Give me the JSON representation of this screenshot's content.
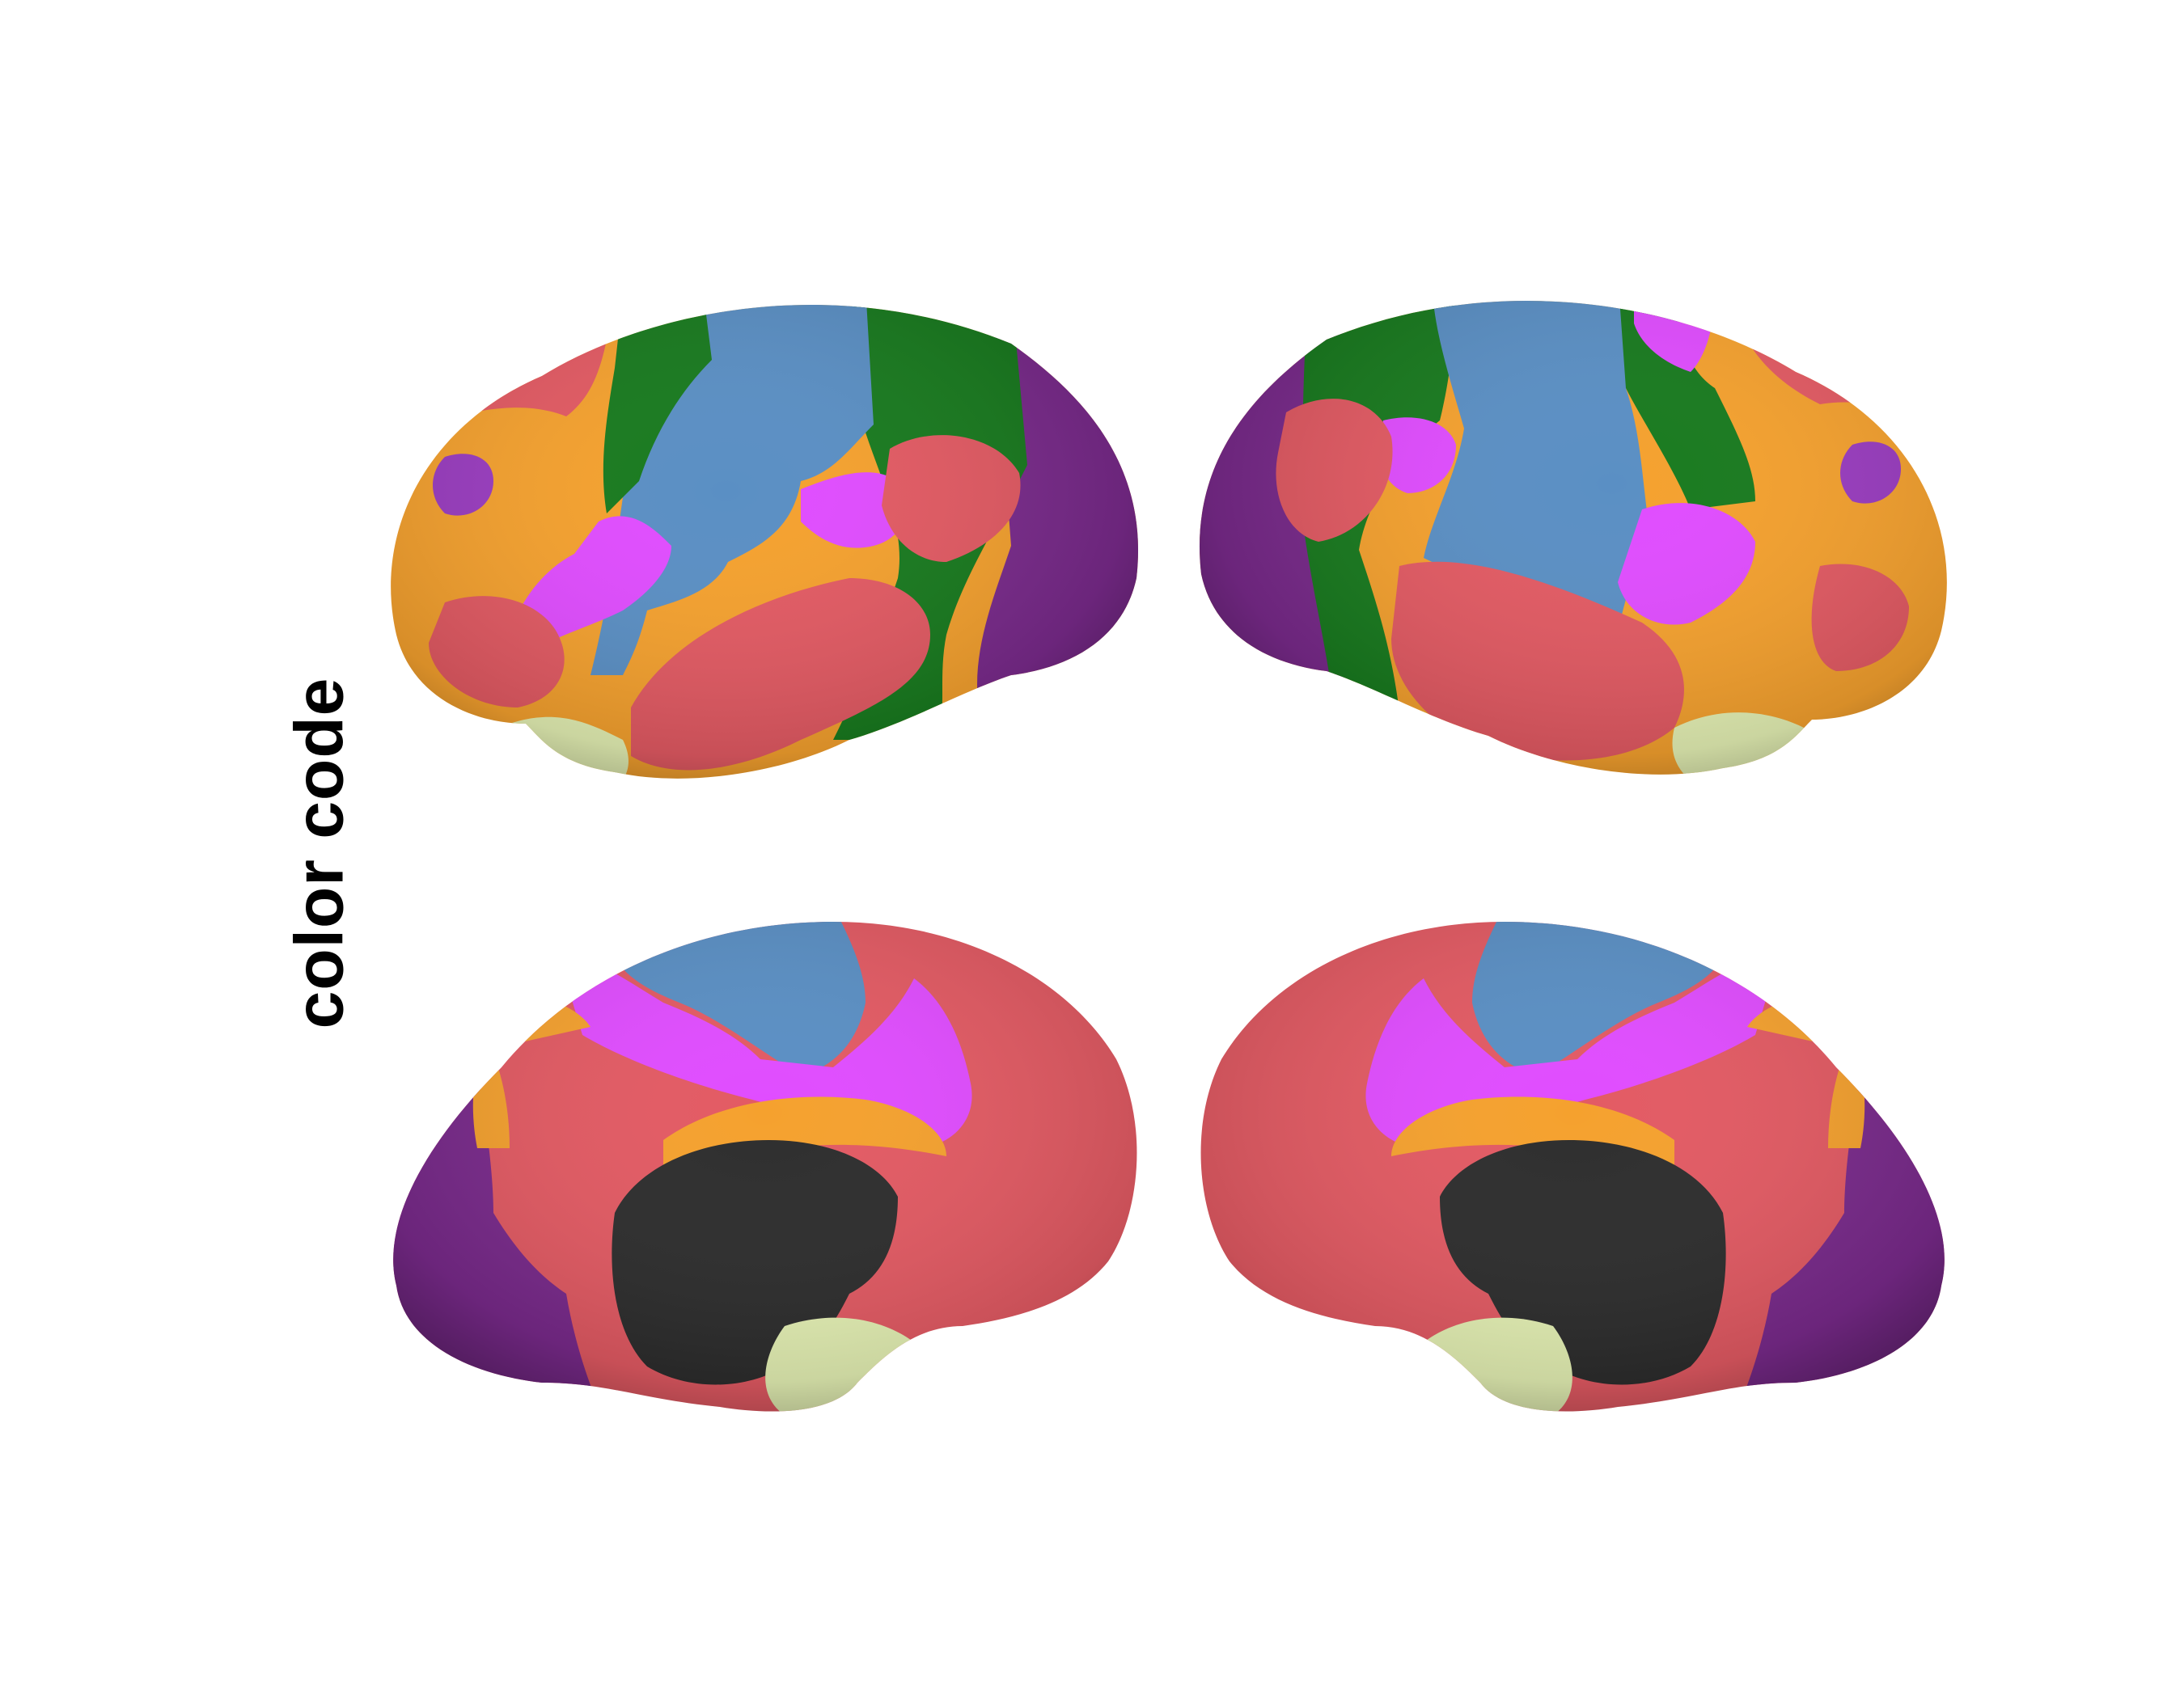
{
  "label": "color code",
  "colors": {
    "purple": "#7a2a8c",
    "violet": "#e04cff",
    "blue": "#5a8fc4",
    "green": "#187a1e",
    "orange": "#f5a12e",
    "red": "#e35a63",
    "lightyellow": "#e6f2b5",
    "dark": "#2d2d2d",
    "border_green": "#2e7a3a",
    "border_white": "#fff2c0"
  },
  "views": [
    {
      "name": "left-lateral"
    },
    {
      "name": "right-lateral"
    },
    {
      "name": "left-medial"
    },
    {
      "name": "right-medial"
    }
  ]
}
